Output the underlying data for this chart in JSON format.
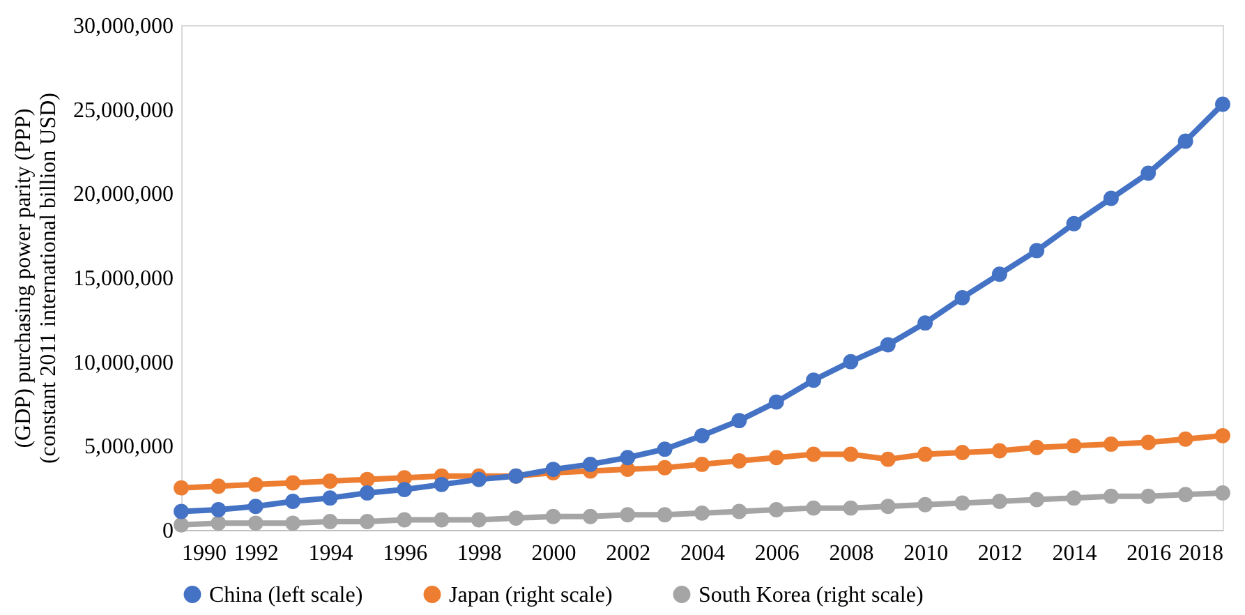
{
  "chart_data": {
    "type": "line",
    "ylabel": "(GDP) purchasing power parity (PPP) (constant 2011 international billion USD)",
    "x": [
      1990,
      1991,
      1992,
      1993,
      1994,
      1995,
      1996,
      1997,
      1998,
      1999,
      2000,
      2001,
      2002,
      2003,
      2004,
      2005,
      2006,
      2007,
      2008,
      2009,
      2010,
      2011,
      2012,
      2013,
      2014,
      2015,
      2016,
      2017,
      2018
    ],
    "series": [
      {
        "name": "China (left scale)",
        "color": "#4472c4",
        "values": [
          1100000,
          1200000,
          1400000,
          1700000,
          1900000,
          2200000,
          2400000,
          2700000,
          3000000,
          3200000,
          3600000,
          3900000,
          4300000,
          4800000,
          5600000,
          6500000,
          7600000,
          8900000,
          10000000,
          11000000,
          12300000,
          13800000,
          15200000,
          16600000,
          18200000,
          19700000,
          21200000,
          23100000,
          25300000
        ]
      },
      {
        "name": "Japan (right scale)",
        "color": "#ed7d31",
        "values": [
          2500000,
          2600000,
          2700000,
          2800000,
          2900000,
          3000000,
          3100000,
          3200000,
          3200000,
          3200000,
          3400000,
          3500000,
          3600000,
          3700000,
          3900000,
          4100000,
          4300000,
          4500000,
          4500000,
          4200000,
          4500000,
          4600000,
          4700000,
          4900000,
          5000000,
          5100000,
          5200000,
          5400000,
          5600000
        ]
      },
      {
        "name": "South Korea (right scale)",
        "color": "#a5a5a5",
        "values": [
          300000,
          400000,
          400000,
          400000,
          500000,
          500000,
          600000,
          600000,
          600000,
          700000,
          800000,
          800000,
          900000,
          900000,
          1000000,
          1100000,
          1200000,
          1300000,
          1300000,
          1400000,
          1500000,
          1600000,
          1700000,
          1800000,
          1900000,
          2000000,
          2000000,
          2100000,
          2200000
        ]
      }
    ],
    "xlim": [
      1990,
      2018
    ],
    "xticks": [
      1990,
      1992,
      1994,
      1996,
      1998,
      2000,
      2002,
      2004,
      2006,
      2008,
      2010,
      2012,
      2014,
      2016,
      2018
    ],
    "ylim": [
      0,
      30000000
    ],
    "yticks": [
      0,
      {
        "value": 5000000,
        "label": "5,000,000"
      },
      {
        "value": 10000000,
        "label": "10,000,000"
      },
      {
        "value": 15000000,
        "label": "15,000,000"
      },
      {
        "value": 20000000,
        "label": "20,000,000"
      },
      {
        "value": 25000000,
        "label": "25,000,000"
      },
      {
        "value": 30000000,
        "label": "30,000,000"
      }
    ],
    "legend": "bottom",
    "marker": "circle",
    "line_style": "solid",
    "grid": false
  }
}
